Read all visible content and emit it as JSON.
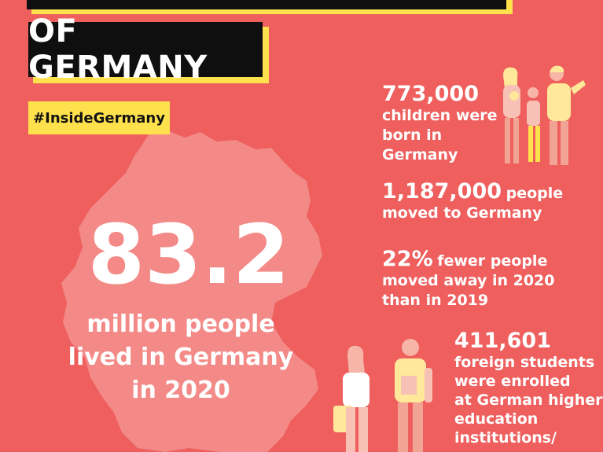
{
  "title": {
    "line2": "OF GERMANY"
  },
  "hashtag": "#InsideGermany",
  "headline": {
    "number": "83.2",
    "caption_line1": "million people",
    "caption_line2": "lived in Germany",
    "caption_line3": "in 2020"
  },
  "stats": [
    {
      "number": "773,000",
      "text_lines": [
        "children were",
        "born in",
        "Germany"
      ]
    },
    {
      "number": "1,187,000",
      "text_inline": "people",
      "text_line2": "moved to Germany"
    },
    {
      "number": "22%",
      "text_inline": "fewer people",
      "text_line2": "moved away in 2020",
      "text_line3": "than in 2019"
    },
    {
      "number": "411,601",
      "text_lines": [
        "foreign students",
        "were enrolled",
        "at German higher",
        "education",
        "institutions/"
      ]
    }
  ],
  "colors": {
    "background": "#ee5f5e",
    "accent_yellow": "#ffe14d",
    "title_black": "#0f0f0f",
    "map_fill": "#f38a87"
  },
  "illustrations": [
    "family-illustration",
    "students-illustration",
    "germany-map"
  ]
}
